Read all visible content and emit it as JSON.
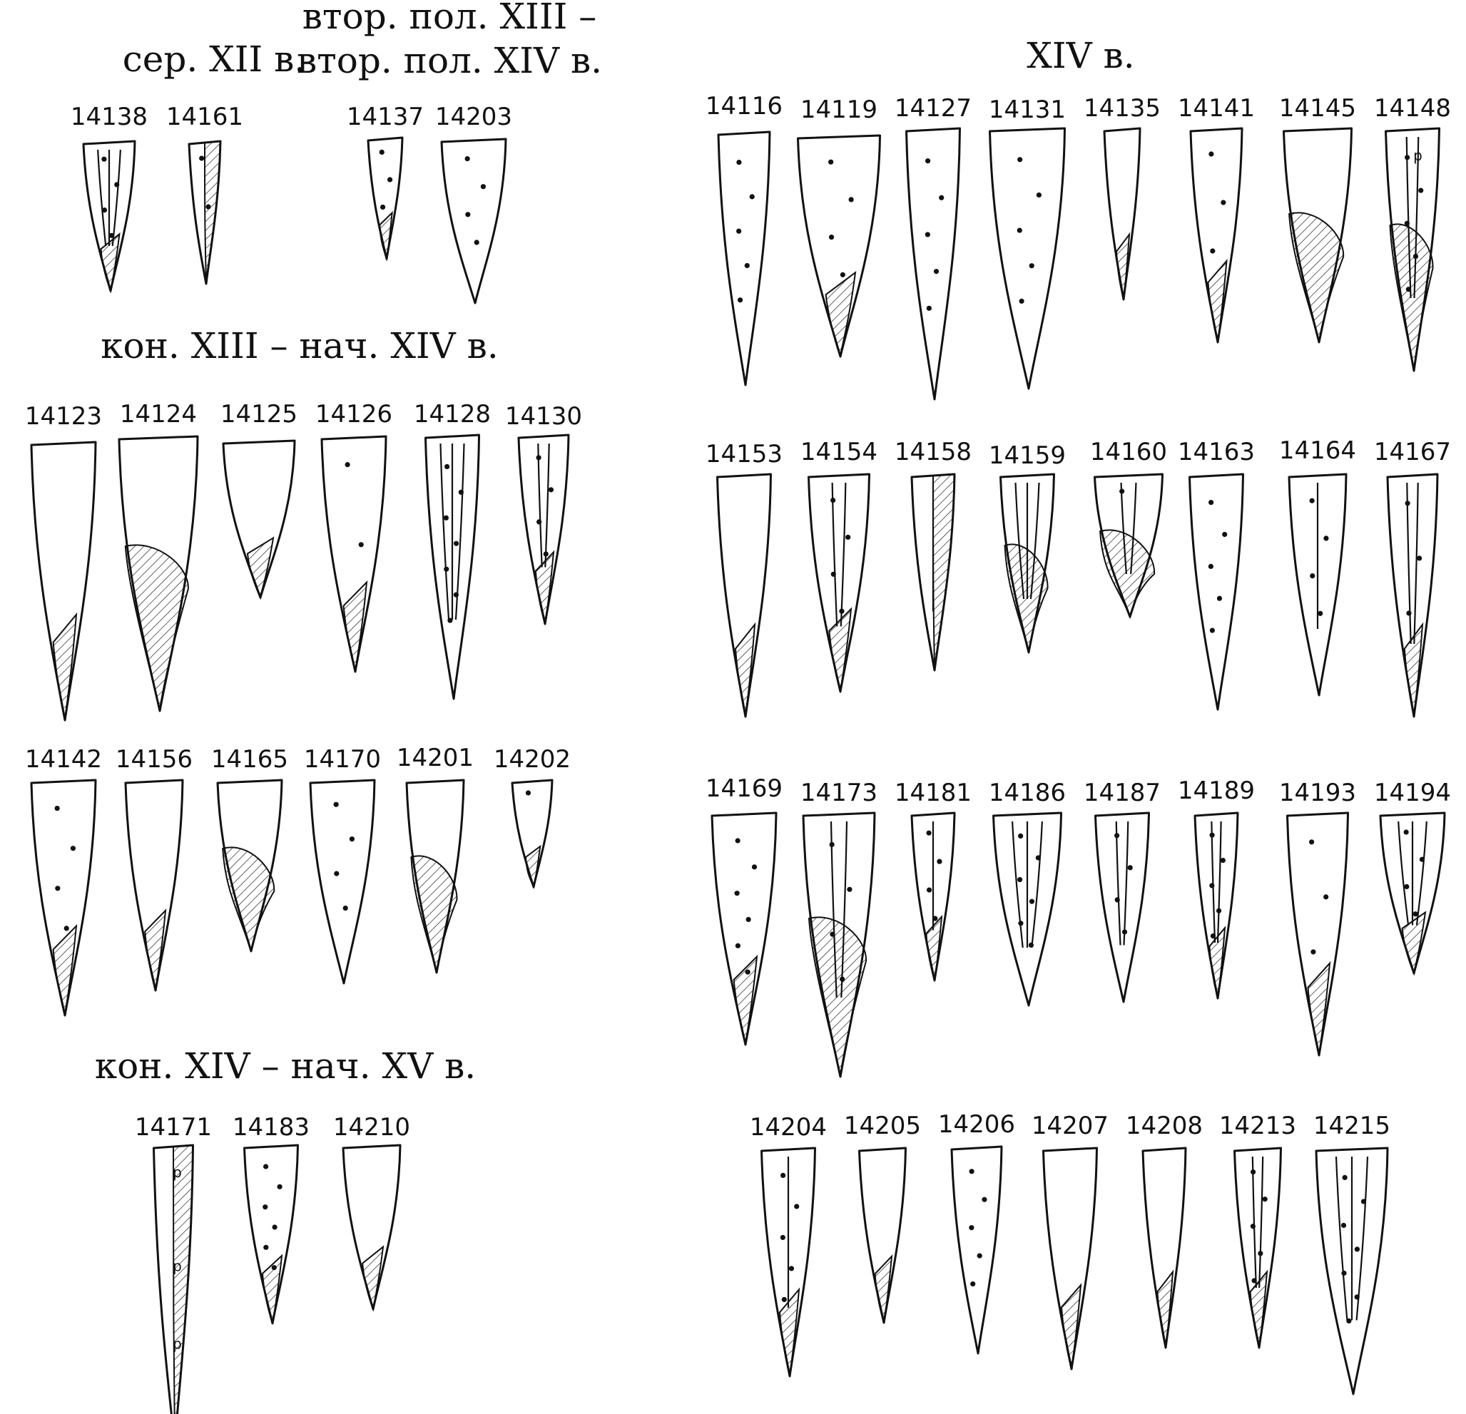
{
  "groups": [
    {
      "label_lines": [
        "сер. XII в."
      ],
      "items": [
        "14138",
        "14161"
      ]
    },
    {
      "label_lines": [
        "втор. пол. XIII –",
        "втор. пол. XIV в."
      ],
      "items": [
        "14137",
        "14203"
      ]
    },
    {
      "label_lines": [
        "кон. XIII – нач. XIV в."
      ],
      "items": [
        "14123",
        "14124",
        "14125",
        "14126",
        "14128",
        "14130",
        "14142",
        "14156",
        "14165",
        "14170",
        "14201",
        "14202"
      ]
    },
    {
      "label_lines": [
        "кон. XIV – нач. XV в."
      ],
      "items": [
        "14171",
        "14183",
        "14210"
      ]
    },
    {
      "label_lines": [
        "XIV в."
      ],
      "items": [
        "14116",
        "14119",
        "14127",
        "14131",
        "14135",
        "14141",
        "14145",
        "14148",
        "14153",
        "14154",
        "14158",
        "14159",
        "14160",
        "14163",
        "14164",
        "14167",
        "14169",
        "14173",
        "14181",
        "14186",
        "14187",
        "14189",
        "14193",
        "14194",
        "14204",
        "14205",
        "14206",
        "14207",
        "14208",
        "14213",
        "14215"
      ]
    }
  ],
  "item_marks": {
    "14148": "р",
    "14171": "р"
  }
}
